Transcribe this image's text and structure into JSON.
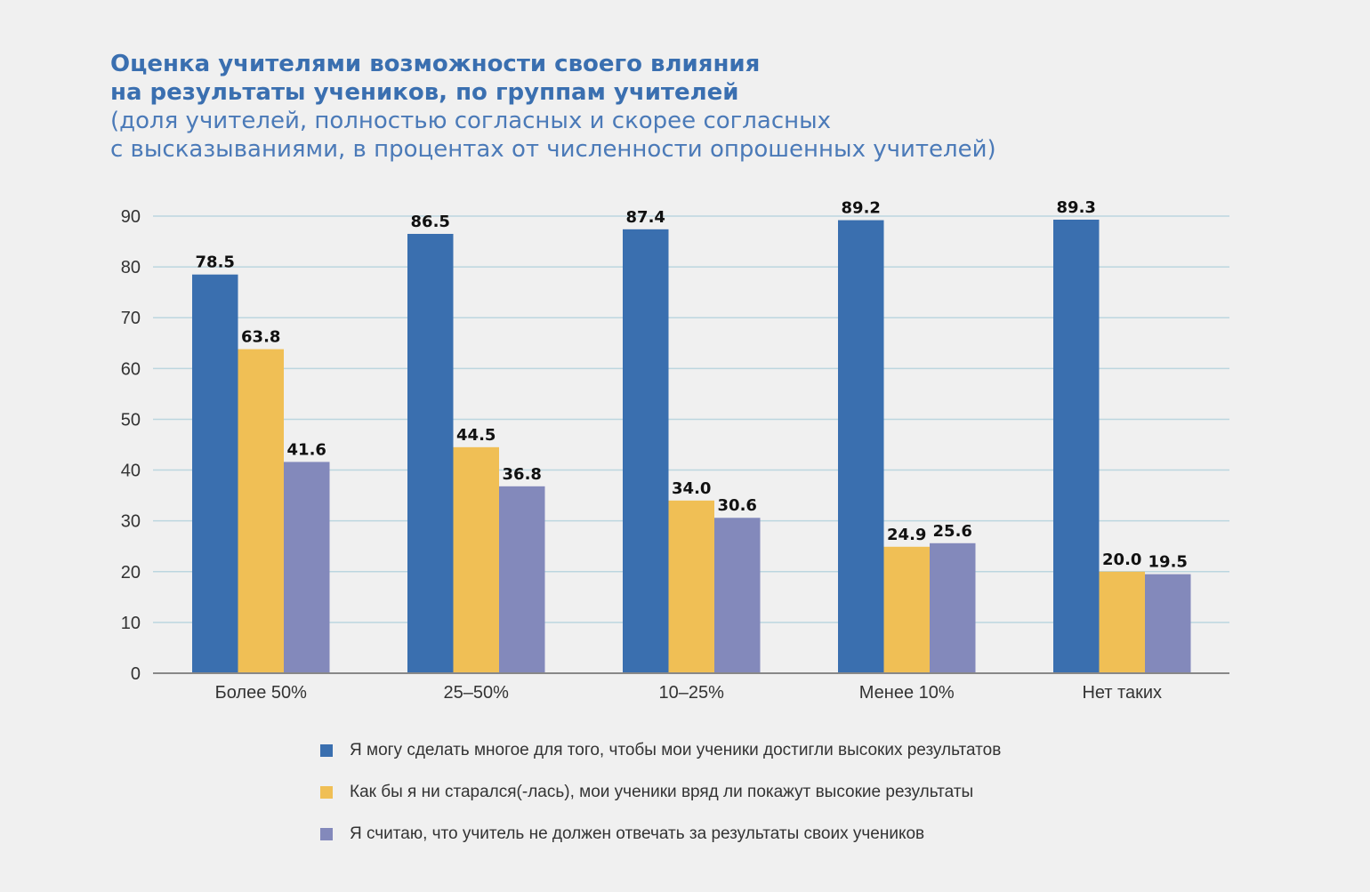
{
  "colors": {
    "background": "#f0f0f0",
    "title": "#3a6fb0",
    "grid": "#bcd6df",
    "axis": "#888888"
  },
  "chart_data": {
    "type": "bar",
    "title_lines": [
      "Оценка учителями возможности своего влияния",
      "на результаты учеников, по группам учителей"
    ],
    "subtitle_lines": [
      "(доля учителей, полностью согласных и скорее согласных",
      "с высказываниями, в процентах от численности опрошенных учителей)"
    ],
    "categories": [
      "Более 50%",
      "25–50%",
      "10–25%",
      "Менее 10%",
      "Нет таких"
    ],
    "series": [
      {
        "name": "Я могу сделать многое для того, чтобы мои ученики достигли высоких результатов",
        "color": "#3a6faf",
        "values": [
          78.5,
          86.5,
          87.4,
          89.2,
          89.3
        ],
        "labels": [
          "78.5",
          "86.5",
          "87.4",
          "89.2",
          "89.3"
        ]
      },
      {
        "name": "Как бы я ни старался(-лась), мои ученики вряд ли покажут высокие результаты",
        "color": "#f0bf55",
        "values": [
          63.8,
          44.5,
          34.0,
          24.9,
          20.0
        ],
        "labels": [
          "63.8",
          "44.5",
          "34.0",
          "24.9",
          "20.0"
        ]
      },
      {
        "name": "Я считаю, что учитель не должен отвечать за результаты своих учеников",
        "color": "#8389bb",
        "values": [
          41.6,
          36.8,
          30.6,
          25.6,
          19.5
        ],
        "labels": [
          "41.6",
          "36.8",
          "30.6",
          "25.6",
          "19.5"
        ]
      }
    ],
    "ylim": [
      0,
      90
    ],
    "yticks": [
      "0",
      "10",
      "20",
      "30",
      "40",
      "50",
      "60",
      "70",
      "80",
      "90"
    ],
    "grid": true,
    "legend_position": "bottom"
  }
}
